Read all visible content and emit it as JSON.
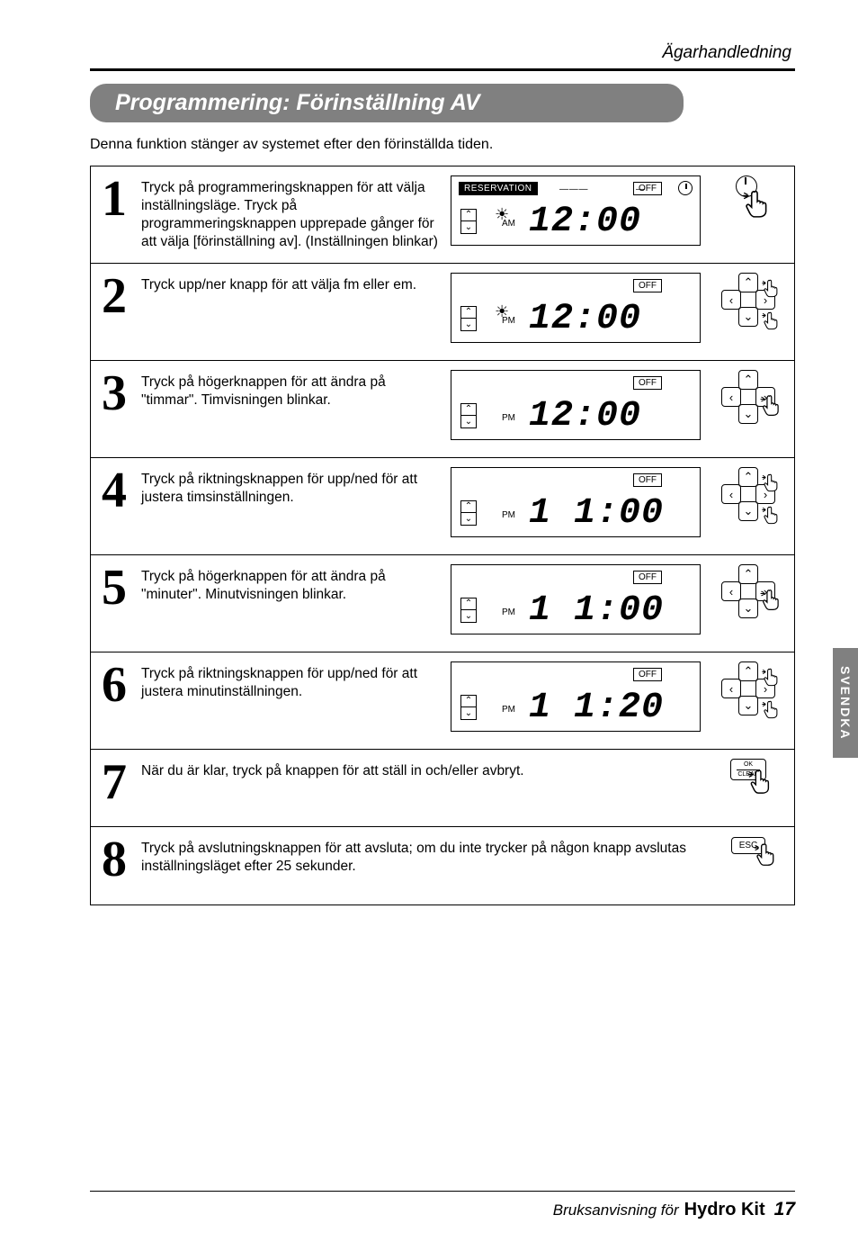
{
  "header_title": "Ägarhandledning",
  "section_title": "Programmering: Förinställning AV",
  "intro_text": "Denna funktion stänger av systemet efter den förinställda tiden.",
  "side_tab": "SVENDKA",
  "steps": [
    {
      "num": "1",
      "text": "Tryck på programmeringsknappen  för att välja inställningsläge. Tryck på programmeringsknappen upprepade gånger för att välja [förinställning av]. (Inställningen blinkar)",
      "has_display": true,
      "display": {
        "reservation": true,
        "dashes": true,
        "clock": true,
        "off": "OFF",
        "sun": true,
        "ampm": "AM",
        "time": "12:00",
        "time_style": "dashed"
      },
      "button": "clock-hand"
    },
    {
      "num": "2",
      "text": "Tryck upp/ner knapp för att välja fm eller em.",
      "has_display": true,
      "display": {
        "off": "OFF",
        "sun": true,
        "ampm": "PM",
        "time": "12:00"
      },
      "button": "dpad-updown"
    },
    {
      "num": "3",
      "text": "Tryck på högerknappen  för att ändra på \"timmar\". Timvisningen blinkar.",
      "has_display": true,
      "display": {
        "off": "OFF",
        "ampm": "PM",
        "time": "12:00"
      },
      "button": "dpad-right"
    },
    {
      "num": "4",
      "text": "Tryck på riktningsknappen för upp/ned för att justera timsinställningen.",
      "has_display": true,
      "display": {
        "off": "OFF",
        "ampm": "PM",
        "time": "1 1:00"
      },
      "button": "dpad-updown"
    },
    {
      "num": "5",
      "text": "Tryck på högerknappen för att ändra på \"minuter\".  Minutvisningen blinkar.",
      "has_display": true,
      "display": {
        "off": "OFF",
        "ampm": "PM",
        "time": "1 1:00"
      },
      "button": "dpad-right"
    },
    {
      "num": "6",
      "text": "Tryck på riktningsknappen för upp/ned för att justera minutinställningen.",
      "has_display": true,
      "display": {
        "off": "OFF",
        "ampm": "PM",
        "time": "1 1:20"
      },
      "button": "dpad-updown"
    },
    {
      "num": "7",
      "text": "När du är klar, tryck på knappen för att ställ in och/eller avbryt.",
      "has_display": false,
      "button": "ok"
    },
    {
      "num": "8",
      "text": "Tryck på avslutningsknappen för att avsluta; om du inte trycker på någon knapp avslutas inställningsläget efter 25 sekunder.",
      "has_display": false,
      "button": "esc"
    }
  ],
  "button_labels": {
    "ok_top": "OK",
    "ok_bottom": "CLEAR",
    "esc": "ESC"
  },
  "lcd_common": {
    "reservation_label": "RESERVATION",
    "up_glyph": "⌃",
    "down_glyph": "⌄"
  },
  "footer": {
    "pre": "Bruksanvisning för",
    "brand": "Hydro Kit",
    "page": "17"
  },
  "colors": {
    "bar_bg": "#808080",
    "text": "#000000",
    "bg": "#ffffff"
  }
}
